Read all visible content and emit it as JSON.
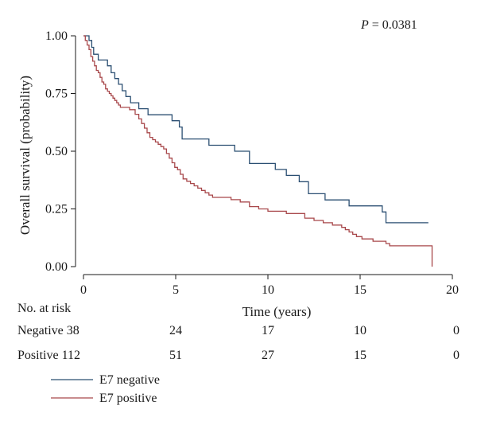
{
  "chart_data": {
    "type": "line",
    "subtype": "kaplan-meier step",
    "xlabel": "Time (years)",
    "ylabel": "Overall survival (probability)",
    "xlim": [
      0,
      20
    ],
    "ylim": [
      0,
      1
    ],
    "xticks": [
      "0",
      "5",
      "10",
      "15",
      "20"
    ],
    "yticks": [
      "0.00",
      "0.25",
      "0.50",
      "0.75",
      "1.00"
    ],
    "grid": false,
    "annotation": {
      "label": "P",
      "text": " = 0.0381"
    },
    "legend_position": "bottom-left",
    "series": [
      {
        "name": "E7 negative",
        "color": "#2b4f72",
        "x": [
          0,
          0.3,
          0.45,
          0.55,
          0.8,
          1.3,
          1.5,
          1.7,
          1.9,
          2.1,
          2.3,
          2.55,
          3.0,
          3.5,
          4.8,
          5.2,
          5.35,
          6.8,
          8.2,
          9.0,
          10.4,
          11.0,
          11.7,
          12.2,
          13.1,
          14.4,
          16.2,
          16.4,
          18.7
        ],
        "y": [
          1.0,
          0.98,
          0.95,
          0.92,
          0.895,
          0.87,
          0.84,
          0.815,
          0.79,
          0.762,
          0.737,
          0.71,
          0.684,
          0.658,
          0.632,
          0.605,
          0.553,
          0.526,
          0.5,
          0.447,
          0.421,
          0.395,
          0.368,
          0.316,
          0.289,
          0.263,
          0.237,
          0.19,
          0.19
        ]
      },
      {
        "name": "E7 positive",
        "color": "#a8484b",
        "x": [
          0,
          0.1,
          0.2,
          0.3,
          0.4,
          0.5,
          0.6,
          0.7,
          0.8,
          0.9,
          1.0,
          1.1,
          1.2,
          1.3,
          1.4,
          1.5,
          1.6,
          1.7,
          1.8,
          1.9,
          2.0,
          2.5,
          2.8,
          3.0,
          3.15,
          3.3,
          3.45,
          3.6,
          3.75,
          3.9,
          4.05,
          4.2,
          4.35,
          4.5,
          4.65,
          4.8,
          4.95,
          5.1,
          5.25,
          5.4,
          5.6,
          5.8,
          6.0,
          6.2,
          6.4,
          6.6,
          6.8,
          7.0,
          8.0,
          8.5,
          9.0,
          9.5,
          10.0,
          11.0,
          12.0,
          12.5,
          13.0,
          13.5,
          14.0,
          14.2,
          14.4,
          14.6,
          14.8,
          15.1,
          15.4,
          15.7,
          16.0,
          16.4,
          16.6,
          18.9,
          18.9
        ],
        "y": [
          1.0,
          0.98,
          0.96,
          0.94,
          0.91,
          0.89,
          0.87,
          0.85,
          0.84,
          0.82,
          0.8,
          0.79,
          0.77,
          0.76,
          0.75,
          0.74,
          0.73,
          0.72,
          0.71,
          0.7,
          0.69,
          0.68,
          0.66,
          0.64,
          0.62,
          0.6,
          0.58,
          0.56,
          0.55,
          0.54,
          0.53,
          0.52,
          0.51,
          0.49,
          0.47,
          0.45,
          0.43,
          0.42,
          0.4,
          0.38,
          0.37,
          0.36,
          0.35,
          0.34,
          0.33,
          0.32,
          0.31,
          0.3,
          0.29,
          0.28,
          0.26,
          0.25,
          0.24,
          0.23,
          0.21,
          0.2,
          0.19,
          0.18,
          0.17,
          0.16,
          0.15,
          0.14,
          0.13,
          0.12,
          0.12,
          0.11,
          0.11,
          0.1,
          0.09,
          0.09,
          0.0
        ]
      }
    ],
    "risk_table": {
      "title": "No. at risk",
      "rows": [
        {
          "label": "Negative 38",
          "values": [
            "24",
            "17",
            "10",
            "0"
          ]
        },
        {
          "label": "Positive 112",
          "values": [
            "51",
            "27",
            "15",
            "0"
          ]
        }
      ]
    }
  }
}
